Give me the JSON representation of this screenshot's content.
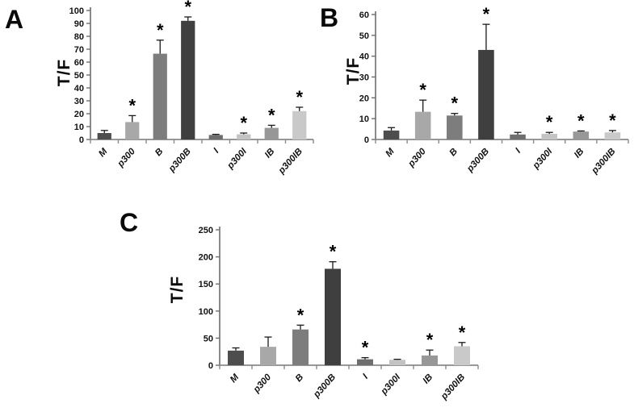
{
  "figure": {
    "background": "#ffffff"
  },
  "style": {
    "axis_color": "#6e6e6e",
    "baseline_color": "#8a8a8a",
    "error_bar_color": "#1a1a1a",
    "star_color": "#000000",
    "text_color": "#111111"
  },
  "chart_data": [
    {
      "type": "bar",
      "panel_letter": "A",
      "title": "",
      "xlabel": "",
      "ylabel": "T/F",
      "grid": false,
      "legend": null,
      "categories": [
        "M",
        "p300",
        "B",
        "p300B",
        "I",
        "p300I",
        "IB",
        "p300IB"
      ],
      "values": [
        5,
        13.5,
        66.5,
        92,
        3.5,
        4,
        9,
        22
      ],
      "errors": [
        2,
        5,
        10.5,
        3,
        0.5,
        1,
        2,
        3
      ],
      "significance": [
        "",
        "*",
        "*",
        "*",
        "",
        "*",
        "*",
        "*"
      ],
      "bar_colors": [
        "#4d4d4d",
        "#a8a8a8",
        "#7d7d7d",
        "#3f3f3f",
        "#6e6e6e",
        "#c3c3c3",
        "#979797",
        "#c9c9c9"
      ],
      "ylim": [
        0,
        100
      ],
      "ytick_step": 10
    },
    {
      "type": "bar",
      "panel_letter": "B",
      "title": "",
      "xlabel": "",
      "ylabel": "T/F",
      "grid": false,
      "legend": null,
      "categories": [
        "M",
        "p300",
        "B",
        "p300B",
        "I",
        "p300I",
        "IB",
        "p300IB"
      ],
      "values": [
        4.3,
        13.3,
        11.5,
        43,
        2.4,
        2.7,
        3.8,
        3.4
      ],
      "errors": [
        1.4,
        5.6,
        1,
        12.3,
        1,
        0.7,
        0.3,
        0.9
      ],
      "significance": [
        "",
        "*",
        "*",
        "*",
        "",
        "*",
        "*",
        "*"
      ],
      "bar_colors": [
        "#4d4d4d",
        "#a8a8a8",
        "#7d7d7d",
        "#3f3f3f",
        "#6e6e6e",
        "#c3c3c3",
        "#979797",
        "#c9c9c9"
      ],
      "ylim": [
        0,
        60
      ],
      "ytick_step": 10
    },
    {
      "type": "bar",
      "panel_letter": "C",
      "title": "",
      "xlabel": "",
      "ylabel": "T/F",
      "grid": false,
      "legend": null,
      "categories": [
        "M",
        "p300",
        "B",
        "p300B",
        "I",
        "p300I",
        "IB",
        "p300IB"
      ],
      "values": [
        27,
        34,
        66,
        178,
        11,
        10,
        18,
        35
      ],
      "errors": [
        5,
        18,
        8,
        13,
        3,
        1,
        10,
        7
      ],
      "significance": [
        "",
        "",
        "*",
        "*",
        "*",
        "",
        "*",
        "*"
      ],
      "bar_colors": [
        "#4d4d4d",
        "#a8a8a8",
        "#7d7d7d",
        "#3f3f3f",
        "#6e6e6e",
        "#c3c3c3",
        "#979797",
        "#c9c9c9"
      ],
      "ylim": [
        0,
        250
      ],
      "ytick_step": 50
    }
  ]
}
